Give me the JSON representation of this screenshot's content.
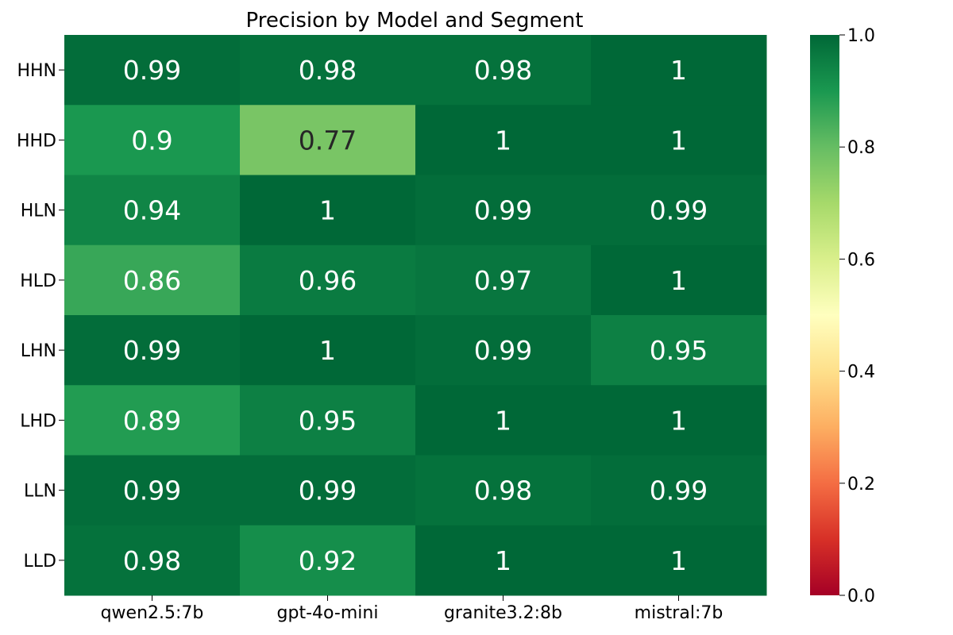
{
  "chart_data": {
    "type": "heatmap",
    "title": "Precision by Model and Segment",
    "xlabel": "",
    "ylabel": "",
    "columns": [
      "qwen2.5:7b",
      "gpt-4o-mini",
      "granite3.2:8b",
      "mistral:7b"
    ],
    "rows": [
      "HHN",
      "HHD",
      "HLN",
      "HLD",
      "LHN",
      "LHD",
      "LLN",
      "LLD"
    ],
    "values": [
      [
        0.99,
        0.98,
        0.98,
        1.0
      ],
      [
        0.9,
        0.77,
        1.0,
        1.0
      ],
      [
        0.94,
        1.0,
        0.99,
        0.99
      ],
      [
        0.86,
        0.96,
        0.97,
        1.0
      ],
      [
        0.99,
        1.0,
        0.99,
        0.95
      ],
      [
        0.89,
        0.95,
        1.0,
        1.0
      ],
      [
        0.99,
        0.99,
        0.98,
        0.99
      ],
      [
        0.98,
        0.92,
        1.0,
        1.0
      ]
    ],
    "annotations": [
      [
        "0.99",
        "0.98",
        "0.98",
        "1"
      ],
      [
        "0.9",
        "0.77",
        "1",
        "1"
      ],
      [
        "0.94",
        "1",
        "0.99",
        "0.99"
      ],
      [
        "0.86",
        "0.96",
        "0.97",
        "1"
      ],
      [
        "0.99",
        "1",
        "0.99",
        "0.95"
      ],
      [
        "0.89",
        "0.95",
        "1",
        "1"
      ],
      [
        "0.99",
        "0.99",
        "0.98",
        "0.99"
      ],
      [
        "0.98",
        "0.92",
        "1",
        "1"
      ]
    ],
    "colorbar": {
      "min": 0.0,
      "max": 1.0,
      "ticks": [
        "0.0",
        "0.2",
        "0.4",
        "0.6",
        "0.8",
        "1.0"
      ],
      "colormap": "RdYlGn"
    }
  }
}
